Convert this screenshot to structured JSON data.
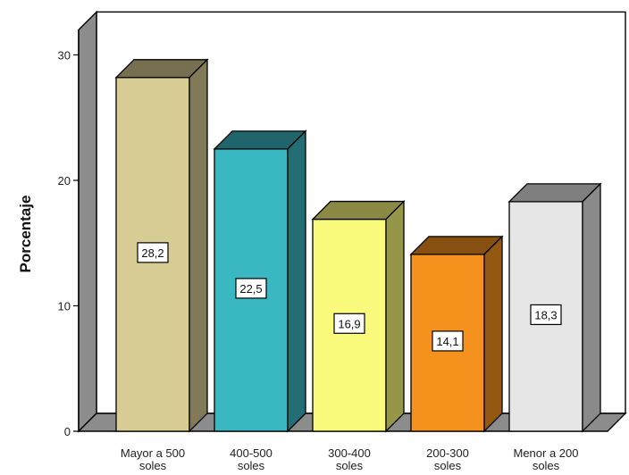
{
  "chart_data": {
    "type": "bar",
    "title": "",
    "xlabel": "",
    "ylabel": "Porcentaje",
    "ylim": [
      0,
      32
    ],
    "yticks": [
      0,
      10,
      20,
      30
    ],
    "grid": false,
    "legend": "none",
    "three_d": true,
    "categories": [
      [
        "Mayor a 500",
        "soles"
      ],
      [
        "400-500",
        "soles"
      ],
      [
        "300-400",
        "soles"
      ],
      [
        "200-300",
        "soles"
      ],
      [
        "Menor a 200",
        "soles"
      ]
    ],
    "values": [
      28.2,
      22.5,
      16.9,
      14.1,
      18.3
    ],
    "data_labels": [
      "28,2",
      "22,5",
      "16,9",
      "14,1",
      "18,3"
    ],
    "colors": [
      "#d6cc94",
      "#3ab8c2",
      "#fafa7c",
      "#f5921e",
      "#e6e6e6"
    ],
    "wall_color": "#8c8c8c",
    "floor_color": "#8c8c8c"
  }
}
